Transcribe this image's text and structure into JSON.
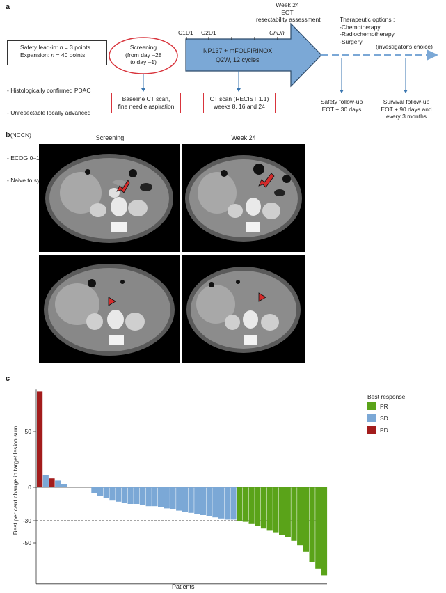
{
  "panel_a": {
    "letter": "a",
    "enrollment": {
      "safety_lead_in_prefix": "Safety lead-in: ",
      "safety_lead_in_n": "n",
      "safety_lead_in_suffix": " = 3 points",
      "expansion_prefix": "Expansion: ",
      "expansion_n": "n",
      "expansion_suffix": " = 40 points"
    },
    "criteria": [
      "- Histologically confirmed PDAC",
      "- Unresectable locally advanced",
      "  (NCCN)",
      "- ECOG 0–1",
      "- Naive to systemic treatment"
    ],
    "screening": [
      "Screening",
      "(from day –28",
      "to day –1)"
    ],
    "baseline": [
      "Baseline CT scan,",
      "fine needle aspiration"
    ],
    "cycles": {
      "c1d1": "C1D1",
      "c2d1": "C2D1",
      "cndn": "CnDn"
    },
    "week24": [
      "Week 24",
      "EOT",
      "resectability assessment"
    ],
    "treatment": [
      "NP137 + mFOLFIRINOX",
      "Q2W, 12 cycles"
    ],
    "ct_scan": [
      "CT scan (RECIST 1.1)",
      "weeks 8, 16 and 24"
    ],
    "therapeutic_options": [
      "Therapeutic options :",
      "-Chemotherapy",
      "-Radiochemotherapy",
      "-Surgery"
    ],
    "investigator": "(investigator's choice)",
    "safety_followup": [
      "Safety follow-up",
      "EOT + 30 days"
    ],
    "survival_followup": [
      "Survival follow-up",
      "EOT + 90 days and",
      "every 3 months"
    ]
  },
  "panel_b": {
    "letter": "b",
    "col_labels": [
      "Screening",
      "Week 24"
    ]
  },
  "panel_c": {
    "letter": "c",
    "ylabel": "Best per cent change in target lesion sum",
    "xlabel": "Patients",
    "legend_title": "Best response"
  },
  "chart_data": {
    "type": "bar",
    "xlabel": "Patients",
    "ylabel": "Best per cent change in target lesion sum",
    "ylim": [
      -83,
      88
    ],
    "yticks": [
      50,
      0,
      -30,
      -50
    ],
    "reference_line": -30,
    "legend_placement": "top-right",
    "series": [
      {
        "name": "PR",
        "color": "#5aa319"
      },
      {
        "name": "SD",
        "color": "#7ba8d6"
      },
      {
        "name": "PD",
        "color": "#a31c1c"
      }
    ],
    "values": [
      86,
      11,
      8,
      6,
      3,
      0,
      0,
      0,
      0,
      -5,
      -8,
      -10,
      -12,
      -13,
      -14,
      -15,
      -15,
      -16,
      -17,
      -17,
      -18,
      -19,
      -20,
      -21,
      -22,
      -23,
      -24,
      -25,
      -26,
      -27,
      -28,
      -29,
      -29,
      -30,
      -31,
      -33,
      -35,
      -37,
      -39,
      -41,
      -43,
      -45,
      -48,
      -52,
      -58,
      -67,
      -73,
      -79
    ],
    "responses": [
      "PD",
      "SD",
      "PD",
      "SD",
      "SD",
      "SD",
      "SD",
      "SD",
      "SD",
      "SD",
      "SD",
      "SD",
      "SD",
      "SD",
      "SD",
      "SD",
      "SD",
      "SD",
      "SD",
      "SD",
      "SD",
      "SD",
      "SD",
      "SD",
      "SD",
      "SD",
      "SD",
      "SD",
      "SD",
      "SD",
      "SD",
      "SD",
      "SD",
      "PR",
      "PR",
      "PR",
      "PR",
      "PR",
      "PR",
      "PR",
      "PR",
      "PR",
      "PR",
      "PR",
      "PR",
      "PR",
      "PR",
      "PR"
    ]
  }
}
